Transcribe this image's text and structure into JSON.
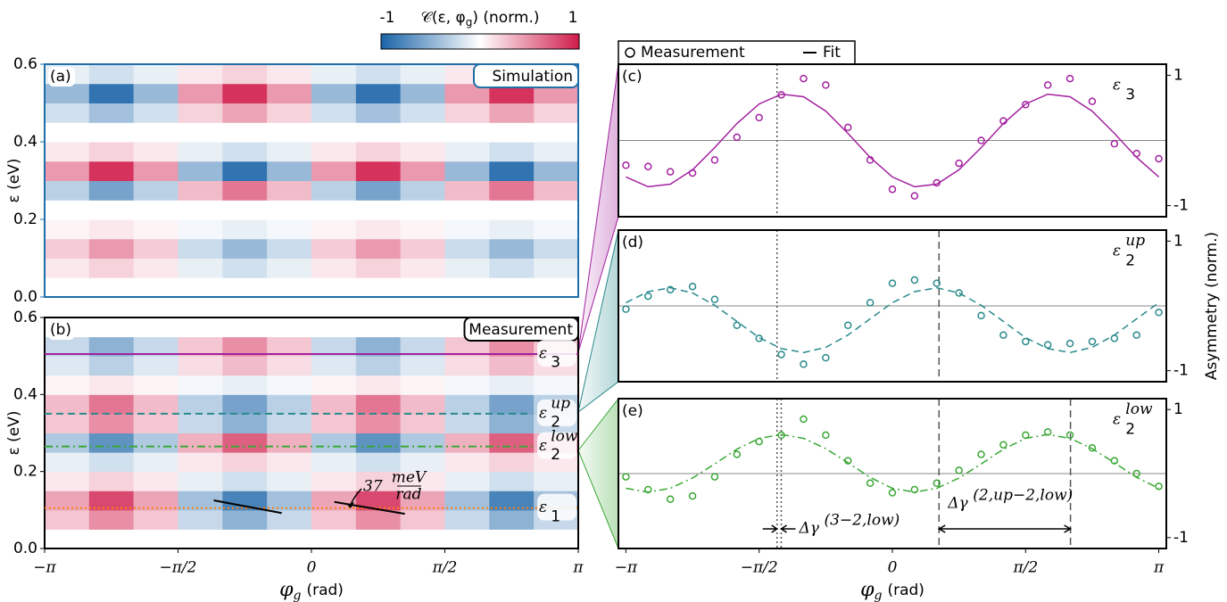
{
  "chart_data": [
    {
      "type": "heatmap",
      "panel": "(a)",
      "badge": "Simulation",
      "frame_color": "#1f6ea8",
      "axis_color": "#1f6ea8",
      "colorscale": [
        "#1a64a8",
        "#ffffff",
        "#d01c4b"
      ],
      "colorbar": {
        "label": "𝒞(ε, φ",
        "label_sub": "g",
        "label_rest": ") (norm.)",
        "lim": [
          -1,
          1
        ],
        "ticks": [
          -1,
          1
        ]
      },
      "xlim": [
        -3.1416,
        3.1416
      ],
      "ylim": [
        0,
        0.6
      ],
      "yticks": [
        {
          "value": 0,
          "label": "0.0"
        },
        0.2,
        0.4,
        0.6
      ],
      "ylabel": "ε (eV)",
      "values": [
        [
          0,
          0,
          0,
          0,
          0,
          0,
          0,
          0,
          0,
          0,
          0,
          0
        ],
        [
          0.1,
          0.2,
          0.1,
          -0.1,
          -0.2,
          -0.1,
          0.1,
          0.2,
          0.1,
          -0.1,
          -0.2,
          -0.1
        ],
        [
          0.23,
          0.45,
          0.23,
          -0.23,
          -0.45,
          -0.23,
          0.23,
          0.45,
          0.23,
          -0.23,
          -0.45,
          -0.23
        ],
        [
          0.05,
          0.1,
          0.05,
          -0.05,
          -0.1,
          -0.05,
          0.05,
          0.1,
          0.05,
          -0.05,
          -0.1,
          -0.05
        ],
        [
          0,
          0,
          0,
          0,
          0,
          0,
          0,
          0,
          0,
          0,
          0,
          0
        ],
        [
          -0.3,
          -0.6,
          -0.3,
          0.3,
          0.6,
          0.3,
          -0.3,
          -0.6,
          -0.3,
          0.3,
          0.6,
          0.3
        ],
        [
          0.45,
          0.9,
          0.45,
          -0.45,
          -0.9,
          -0.45,
          0.45,
          0.9,
          0.45,
          -0.45,
          -0.9,
          -0.45
        ],
        [
          0.1,
          0.2,
          0.1,
          -0.1,
          -0.2,
          -0.1,
          0.1,
          0.2,
          0.1,
          -0.1,
          -0.2,
          -0.1
        ],
        [
          0,
          0,
          0,
          0,
          0,
          0,
          0,
          0,
          0,
          0,
          0,
          0
        ],
        [
          -0.2,
          -0.4,
          -0.2,
          0.2,
          0.4,
          0.2,
          -0.2,
          -0.4,
          -0.2,
          0.2,
          0.4,
          0.2
        ],
        [
          -0.45,
          -0.9,
          -0.45,
          0.45,
          0.9,
          0.45,
          -0.45,
          -0.9,
          -0.45,
          0.45,
          0.9,
          0.45
        ],
        [
          -0.1,
          -0.2,
          -0.1,
          0.1,
          0.2,
          0.1,
          -0.1,
          -0.2,
          -0.1,
          0.1,
          0.2,
          0.1
        ]
      ]
    },
    {
      "type": "heatmap",
      "panel": "(b)",
      "badge": "Measurement",
      "frame_color": "#000000",
      "axis_color": "#000000",
      "colorscale": [
        "#1a64a8",
        "#ffffff",
        "#d01c4b"
      ],
      "xlim": [
        -3.1416,
        3.1416
      ],
      "ylim": [
        0,
        0.6
      ],
      "yticks": [
        {
          "value": 0,
          "label": "0.0"
        },
        0.2,
        0.4,
        0.6
      ],
      "ylabel": "ε (eV)",
      "xticks": [
        {
          "value": -3.1416,
          "label": "−π"
        },
        {
          "value": -1.5708,
          "label": "−π/2"
        },
        0,
        {
          "value": 1.5708,
          "label": "π/2"
        },
        {
          "value": 3.1416,
          "label": "π"
        }
      ],
      "xlabel": {
        "symbol": "φ",
        "sub": "g",
        "unit": "(rad)"
      },
      "values": [
        [
          0,
          0,
          0,
          0,
          0,
          0,
          0,
          0,
          0,
          0,
          0,
          0
        ],
        [
          0.25,
          0.5,
          0.25,
          -0.25,
          -0.5,
          -0.25,
          0.25,
          0.5,
          0.25,
          -0.25,
          -0.5,
          -0.25
        ],
        [
          0.4,
          0.8,
          0.4,
          -0.4,
          -0.8,
          -0.4,
          0.4,
          0.8,
          0.4,
          -0.4,
          -0.8,
          -0.4
        ],
        [
          0.1,
          0.2,
          0.1,
          -0.1,
          -0.2,
          -0.1,
          0.1,
          0.2,
          0.1,
          -0.1,
          -0.2,
          -0.1
        ],
        [
          -0.1,
          -0.2,
          -0.1,
          0.1,
          0.2,
          0.1,
          -0.1,
          -0.2,
          -0.1,
          0.1,
          0.2,
          0.1
        ],
        [
          -0.35,
          -0.7,
          -0.35,
          0.35,
          0.7,
          0.35,
          -0.35,
          -0.7,
          -0.35,
          0.35,
          0.7,
          0.35
        ],
        [
          0.25,
          0.5,
          0.25,
          -0.25,
          -0.5,
          -0.25,
          0.25,
          0.5,
          0.25,
          -0.25,
          -0.5,
          -0.25
        ],
        [
          0.3,
          0.6,
          0.3,
          -0.3,
          -0.6,
          -0.3,
          0.3,
          0.6,
          0.3,
          -0.3,
          -0.6,
          -0.3
        ],
        [
          0.05,
          0.1,
          0.05,
          -0.05,
          -0.1,
          -0.05,
          0.05,
          0.1,
          0.05,
          -0.05,
          -0.1,
          -0.05
        ],
        [
          -0.15,
          -0.3,
          -0.15,
          0.15,
          0.3,
          0.15,
          -0.15,
          -0.3,
          -0.15,
          0.15,
          0.3,
          0.15
        ],
        [
          -0.25,
          -0.5,
          -0.25,
          0.25,
          0.5,
          0.25,
          -0.25,
          -0.5,
          -0.25,
          0.25,
          0.5,
          0.25
        ],
        [
          0,
          0,
          0,
          0,
          0,
          0,
          0,
          0,
          0,
          0,
          0,
          0
        ]
      ],
      "lines": [
        {
          "value": 0.505,
          "color": "#a3219f",
          "style": "solid",
          "end": 3.1416,
          "label": {
            "base": "ε",
            "sub": "3"
          }
        },
        {
          "value": 0.35,
          "color": "#2a8a8c",
          "style": "dashed",
          "end": 2.6,
          "label": {
            "base": "ε",
            "sub": "2",
            "sup": "up"
          }
        },
        {
          "value": 0.265,
          "color": "#3aa835",
          "style": "dashdot",
          "end": 2.6,
          "label": {
            "base": "ε",
            "sub": "2",
            "sup": "low"
          }
        },
        {
          "value": 0.105,
          "color": "#ff7f0e",
          "style": "dotted",
          "end": 3.1416,
          "label": {
            "base": "ε",
            "sub": "1"
          }
        }
      ],
      "slopes": [
        [
          -1.15,
          0.125,
          -0.35,
          0.092
        ],
        [
          0.27,
          0.121,
          1.1,
          0.09
        ]
      ],
      "slope_label": {
        "value": "37",
        "num": "meV",
        "den": "rad"
      }
    },
    {
      "type": "line",
      "panel": "(c)",
      "color": "#a3219f",
      "fit_style": "solid",
      "label": {
        "base": "ε",
        "sub": "3"
      },
      "xlim": [
        -3.23,
        3.23
      ],
      "ylim": [
        -1.17,
        1.17
      ],
      "yticks": [
        -1,
        1
      ],
      "hlines": [
        0
      ],
      "vlines": [
        {
          "x": -1.36,
          "style": "dotted"
        }
      ],
      "x": [
        -3.1416,
        -2.8798,
        -2.618,
        -2.3562,
        -2.0944,
        -1.8326,
        -1.5708,
        -1.309,
        -1.0472,
        -0.7854,
        -0.5236,
        -0.2618,
        0,
        0.2618,
        0.5236,
        0.7854,
        1.0472,
        1.309,
        1.5708,
        1.8326,
        2.0944,
        2.3562,
        2.618,
        2.8798,
        3.1416
      ],
      "series": [
        {
          "name": "Measurement",
          "values": [
            -0.38,
            -0.4,
            -0.48,
            -0.5,
            -0.3,
            0.05,
            0.35,
            0.7,
            0.95,
            0.85,
            0.2,
            -0.3,
            -0.75,
            -0.85,
            -0.65,
            -0.35,
            0.0,
            0.3,
            0.55,
            0.85,
            0.95,
            0.6,
            -0.05,
            -0.2,
            -0.28
          ]
        },
        {
          "name": "Fit",
          "values": [
            -0.56,
            -0.71,
            -0.67,
            -0.45,
            -0.11,
            0.26,
            0.56,
            0.71,
            0.67,
            0.45,
            0.11,
            -0.26,
            -0.56,
            -0.71,
            -0.67,
            -0.45,
            -0.11,
            0.26,
            0.56,
            0.71,
            0.67,
            0.45,
            0.11,
            -0.26,
            -0.56
          ]
        }
      ]
    },
    {
      "type": "line",
      "panel": "(d)",
      "color": "#2a8a8c",
      "fit_style": "dashed",
      "label": {
        "base": "ε",
        "sub": "2",
        "sup": "up"
      },
      "ylabel": "Asymmetry (norm.)",
      "xlim": [
        -3.23,
        3.23
      ],
      "ylim": [
        -1.17,
        1.17
      ],
      "yticks": [
        -1,
        1
      ],
      "hlines": [
        0
      ],
      "vlines": [
        {
          "x": -1.36,
          "style": "dotted"
        },
        {
          "x": 0.55,
          "style": "dashed"
        }
      ],
      "x": [
        -3.1416,
        -2.8798,
        -2.618,
        -2.3562,
        -2.0944,
        -1.8326,
        -1.5708,
        -1.309,
        -1.0472,
        -0.7854,
        -0.5236,
        -0.2618,
        0,
        0.2618,
        0.5236,
        0.7854,
        1.0472,
        1.309,
        1.5708,
        1.8326,
        2.0944,
        2.3562,
        2.618,
        2.8798,
        3.1416
      ],
      "series": [
        {
          "name": "Measurement",
          "values": [
            -0.05,
            0.15,
            0.25,
            0.3,
            0.1,
            -0.3,
            -0.5,
            -0.75,
            -0.9,
            -0.8,
            -0.3,
            0.05,
            0.35,
            0.4,
            0.35,
            0.2,
            -0.15,
            -0.45,
            -0.55,
            -0.6,
            -0.58,
            -0.55,
            -0.5,
            -0.45,
            -0.1
          ]
        },
        {
          "name": "Fit",
          "values": [
            0.05,
            0.22,
            0.28,
            0.2,
            0.01,
            -0.24,
            -0.49,
            -0.66,
            -0.72,
            -0.64,
            -0.45,
            -0.2,
            0.05,
            0.22,
            0.28,
            0.2,
            0.01,
            -0.24,
            -0.49,
            -0.66,
            -0.72,
            -0.64,
            -0.45,
            -0.2,
            0.05
          ]
        }
      ]
    },
    {
      "type": "line",
      "panel": "(e)",
      "color": "#3aa835",
      "fit_style": "dashdot",
      "label": {
        "base": "ε",
        "sub": "2",
        "sup": "low"
      },
      "xlim": [
        -3.23,
        3.23
      ],
      "ylim": [
        -1.17,
        1.17
      ],
      "yticks": [
        -1,
        1
      ],
      "hlines": [
        0
      ],
      "vlines": [
        {
          "x": -1.36,
          "style": "dotted"
        },
        {
          "x": -1.31,
          "style": "dotted"
        },
        {
          "x": 0.55,
          "style": "dashed"
        },
        {
          "x": 2.1,
          "style": "dashed"
        }
      ],
      "xticks": [
        {
          "value": -3.1416,
          "label": "−π"
        },
        {
          "value": -1.5708,
          "label": "−π/2"
        },
        0,
        {
          "value": 1.5708,
          "label": "π/2"
        },
        {
          "value": 3.1416,
          "label": "π"
        }
      ],
      "xlabel": {
        "symbol": "φ",
        "sub": "g",
        "unit": "(rad)"
      },
      "annotations": [
        {
          "base": "Δγ",
          "sup": "(3−2,low)"
        },
        {
          "base": "Δγ",
          "sup": "(2,up−2,low)"
        }
      ],
      "x": [
        -3.1416,
        -2.8798,
        -2.618,
        -2.3562,
        -2.0944,
        -1.8326,
        -1.5708,
        -1.309,
        -1.0472,
        -0.7854,
        -0.5236,
        -0.2618,
        0,
        0.2618,
        0.5236,
        0.7854,
        1.0472,
        1.309,
        1.5708,
        1.8326,
        2.0944,
        2.3562,
        2.618,
        2.8798,
        3.1416
      ],
      "series": [
        {
          "name": "Measurement",
          "values": [
            -0.05,
            -0.25,
            -0.4,
            -0.35,
            -0.05,
            0.3,
            0.5,
            0.6,
            0.85,
            0.6,
            0.2,
            -0.15,
            -0.3,
            -0.25,
            -0.15,
            0.05,
            0.3,
            0.45,
            0.6,
            0.65,
            0.6,
            0.4,
            0.2,
            0.0,
            -0.2
          ]
        },
        {
          "name": "Fit",
          "values": [
            -0.23,
            -0.29,
            -0.23,
            -0.07,
            0.15,
            0.38,
            0.55,
            0.61,
            0.55,
            0.39,
            0.17,
            -0.06,
            -0.23,
            -0.29,
            -0.23,
            -0.07,
            0.15,
            0.38,
            0.55,
            0.61,
            0.55,
            0.39,
            0.17,
            -0.06,
            -0.23
          ]
        }
      ]
    }
  ]
}
